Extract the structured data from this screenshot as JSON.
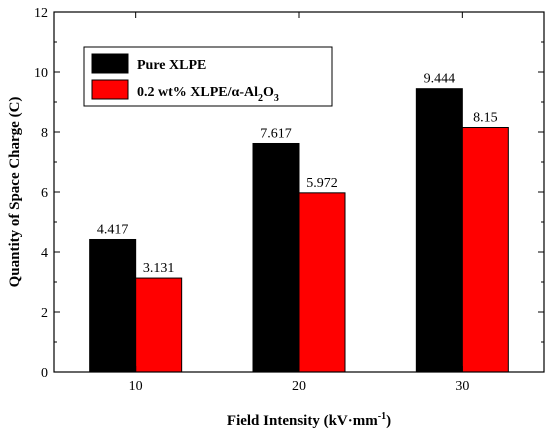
{
  "chart_data": {
    "type": "bar",
    "categories": [
      "10",
      "20",
      "30"
    ],
    "series": [
      {
        "name": "Pure XLPE",
        "values": [
          4.417,
          7.617,
          9.444
        ],
        "color": "#000000"
      },
      {
        "name": "0.2 wt%  XLPE/α-Al2O3",
        "values": [
          3.131,
          5.972,
          8.15
        ],
        "color": "#ff0000"
      }
    ],
    "data_labels": [
      [
        "4.417",
        "7.617",
        "9.444"
      ],
      [
        "3.131",
        "5.972",
        "8.15"
      ]
    ],
    "xlabel": "Field Intensity (kV·mm-1)",
    "ylabel": "Quantity of Space Charge (C)",
    "ylim": [
      0,
      12
    ],
    "yticks": [
      "0",
      "2",
      "4",
      "6",
      "8",
      "10",
      "12"
    ],
    "grid": false,
    "legend_position": "top-left"
  }
}
